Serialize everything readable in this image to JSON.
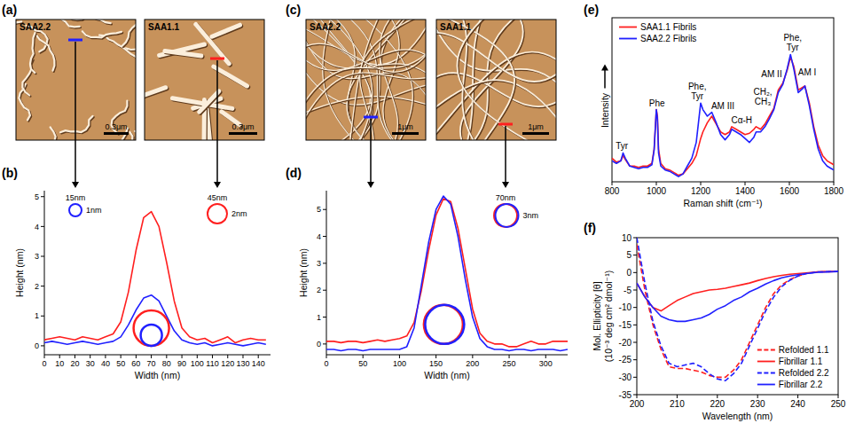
{
  "images": [
    {
      "panel_label": "(a)",
      "items": [
        {
          "label": "SAA2.2",
          "scale_bar": "0.3μm"
        },
        {
          "label": "SAA1.1",
          "scale_bar": "0.3μm"
        }
      ]
    },
    {
      "panel_label": "(c)",
      "items": [
        {
          "label": "SAA2.2",
          "scale_bar": "1μm"
        },
        {
          "label": "SAA1.1",
          "scale_bar": "1μm"
        }
      ]
    }
  ],
  "chart_data": [
    {
      "panel_label": "(b)",
      "type": "line",
      "x_label": "Width (nm)",
      "y_label": "Height (nm)",
      "x": [
        0,
        5,
        10,
        15,
        20,
        25,
        30,
        35,
        40,
        45,
        50,
        55,
        60,
        65,
        70,
        75,
        80,
        85,
        90,
        95,
        100,
        105,
        110,
        115,
        120,
        125,
        130,
        135,
        140,
        145
      ],
      "xlim": [
        0,
        148
      ],
      "xticks": [
        0,
        10,
        20,
        30,
        40,
        50,
        60,
        70,
        80,
        90,
        100,
        110,
        120,
        130,
        140
      ],
      "ylim": [
        -0.3,
        5.2
      ],
      "yticks": [
        0,
        1,
        2,
        3,
        4,
        5
      ],
      "series": [
        {
          "color": "#ff1f1f",
          "annotations": [
            "45nm",
            "2nm"
          ],
          "values": [
            0.2,
            0.25,
            0.3,
            0.25,
            0.2,
            0.3,
            0.25,
            0.2,
            0.3,
            0.4,
            0.8,
            1.8,
            3.2,
            4.3,
            4.5,
            4.0,
            2.8,
            1.5,
            0.6,
            0.3,
            0.2,
            0.25,
            0.1,
            0.2,
            0.3,
            0.1,
            0.2,
            0.25,
            0.2,
            0.2
          ]
        },
        {
          "color": "#2020ff",
          "annotations": [
            "15nm",
            "1nm"
          ],
          "values": [
            0.1,
            0.15,
            0.1,
            0.05,
            0.1,
            0.15,
            0.1,
            0.05,
            0.1,
            0.15,
            0.3,
            0.7,
            1.2,
            1.6,
            1.7,
            1.5,
            1.0,
            0.5,
            0.2,
            0.1,
            0.05,
            0.1,
            0.0,
            0.05,
            0.1,
            0.05,
            0.0,
            0.05,
            0.1,
            0.05
          ]
        }
      ]
    },
    {
      "panel_label": "(d)",
      "type": "line",
      "x_label": "Width (nm)",
      "y_label": "Height (nm)",
      "annotations": [
        "70nm",
        "3nm"
      ],
      "x": [
        0,
        10,
        20,
        30,
        40,
        50,
        60,
        70,
        80,
        90,
        100,
        110,
        120,
        130,
        140,
        150,
        160,
        170,
        180,
        190,
        200,
        210,
        220,
        230,
        240,
        250,
        260,
        270,
        280,
        290,
        300,
        310,
        320,
        330
      ],
      "xlim": [
        0,
        330
      ],
      "xticks": [
        0,
        50,
        100,
        150,
        200,
        250,
        300
      ],
      "ylim": [
        -0.4,
        5.7
      ],
      "yticks": [
        0,
        1,
        2,
        3,
        4,
        5
      ],
      "series": [
        {
          "color": "#ff1f1f",
          "values": [
            0.1,
            0.1,
            0.05,
            0.1,
            0.1,
            0.05,
            0.1,
            0.15,
            0.1,
            0.15,
            0.2,
            0.3,
            0.8,
            2.0,
            3.5,
            4.8,
            5.4,
            5.3,
            4.3,
            2.8,
            1.3,
            0.4,
            0.1,
            0.0,
            0.0,
            -0.1,
            -0.1,
            0.0,
            0.1,
            0.0,
            0.0,
            0.1,
            0.1,
            0.1
          ]
        },
        {
          "color": "#2020ff",
          "values": [
            -0.2,
            -0.2,
            -0.25,
            -0.2,
            -0.2,
            -0.25,
            -0.2,
            -0.2,
            -0.2,
            -0.2,
            -0.2,
            -0.1,
            0.6,
            2.2,
            3.8,
            5.0,
            5.5,
            5.2,
            4.0,
            2.4,
            1.0,
            0.2,
            -0.1,
            -0.2,
            -0.2,
            -0.25,
            -0.2,
            -0.2,
            -0.25,
            -0.2,
            -0.2,
            -0.2,
            -0.25,
            -0.2
          ]
        }
      ]
    },
    {
      "panel_label": "(e)",
      "type": "line",
      "x_label": "Raman shift (cm⁻¹)",
      "y_label": "Intensity",
      "tick_labels": "x",
      "legend": "upper left",
      "x": [
        800,
        820,
        840,
        850,
        860,
        880,
        900,
        920,
        940,
        960,
        980,
        990,
        1000,
        1005,
        1010,
        1020,
        1040,
        1060,
        1080,
        1100,
        1120,
        1140,
        1160,
        1180,
        1200,
        1210,
        1230,
        1250,
        1270,
        1290,
        1310,
        1330,
        1340,
        1360,
        1380,
        1400,
        1420,
        1440,
        1450,
        1470,
        1490,
        1510,
        1530,
        1550,
        1570,
        1590,
        1605,
        1620,
        1640,
        1660,
        1670,
        1690,
        1710,
        1730,
        1750,
        1770,
        1790,
        1800
      ],
      "xlim": [
        800,
        1800
      ],
      "xticks": [
        800,
        1000,
        1200,
        1400,
        1600,
        1800
      ],
      "ylim": [
        0,
        125
      ],
      "annotations": [
        {
          "text": "Tyr",
          "x": 845
        },
        {
          "text": "Phe",
          "x": 1003
        },
        {
          "text": "Phe, Tyr",
          "x": 1185
        },
        {
          "text": "AM III",
          "x": 1300
        },
        {
          "text": "Cα-H",
          "x": 1385
        },
        {
          "text": "CH₂, CH₃",
          "x": 1480
        },
        {
          "text": "AM II",
          "x": 1520
        },
        {
          "text": "Phe, Tyr",
          "x": 1615
        },
        {
          "text": "AM I",
          "x": 1680
        }
      ],
      "series": [
        {
          "name": "SAA1.1 Fibrils",
          "color": "#ff1f1f",
          "values": [
            18,
            15,
            16,
            20,
            17,
            12,
            12,
            11,
            12,
            12,
            14,
            25,
            55,
            50,
            25,
            14,
            10,
            9,
            7,
            5,
            6,
            10,
            14,
            20,
            33,
            38,
            45,
            50,
            44,
            38,
            36,
            38,
            42,
            40,
            38,
            36,
            37,
            40,
            42,
            40,
            44,
            50,
            56,
            70,
            75,
            85,
            95,
            88,
            70,
            72,
            73,
            60,
            42,
            28,
            20,
            16,
            14,
            13
          ]
        },
        {
          "name": "SAA2.2 Fibrils",
          "color": "#2020ff",
          "values": [
            16,
            14,
            16,
            22,
            18,
            12,
            11,
            10,
            11,
            11,
            13,
            24,
            55,
            48,
            22,
            12,
            9,
            8,
            6,
            4,
            6,
            12,
            18,
            30,
            60,
            55,
            50,
            53,
            45,
            36,
            32,
            36,
            40,
            38,
            36,
            33,
            30,
            34,
            38,
            38,
            42,
            48,
            55,
            68,
            74,
            86,
            97,
            86,
            68,
            71,
            73,
            58,
            40,
            25,
            16,
            12,
            10,
            9
          ]
        }
      ]
    },
    {
      "panel_label": "(f)",
      "type": "line",
      "x_label": "Wavelength (nm)",
      "y_label": "Mol. Ellipticity [θ] (10⁻³ deg cm² dmol⁻¹)",
      "legend": "lower right",
      "x": [
        200,
        202,
        204,
        206,
        208,
        210,
        212,
        214,
        216,
        218,
        220,
        222,
        224,
        226,
        228,
        230,
        232,
        234,
        236,
        238,
        240,
        242,
        245,
        250
      ],
      "xlim": [
        200,
        250
      ],
      "xticks": [
        200,
        210,
        220,
        230,
        240,
        250
      ],
      "ylim": [
        -35,
        10
      ],
      "yticks": [
        -35,
        -30,
        -25,
        -20,
        -15,
        -10,
        -5,
        0,
        5,
        10
      ],
      "series": [
        {
          "name": "Refolded 1.1",
          "color": "#ff1f1f",
          "line_style": "dashed",
          "values": [
            8,
            -5,
            -15,
            -22,
            -27,
            -27.5,
            -27.5,
            -28,
            -28.5,
            -29.5,
            -30,
            -30,
            -28,
            -25,
            -20,
            -15,
            -10,
            -6,
            -3.5,
            -2,
            -1,
            -0.3,
            0.2,
            0.3
          ]
        },
        {
          "name": "Fibrillar 1.1",
          "color": "#ff1f1f",
          "line_style": "solid",
          "values": [
            -3,
            -7,
            -10,
            -11,
            -9.5,
            -8,
            -7,
            -6,
            -5.5,
            -5,
            -4.8,
            -4.5,
            -4,
            -3.5,
            -3,
            -2.3,
            -1.7,
            -1.2,
            -0.8,
            -0.5,
            -0.3,
            -0.1,
            0.2,
            0.3
          ]
        },
        {
          "name": "Refolded 2.2",
          "color": "#2020ff",
          "line_style": "dashed",
          "values": [
            10,
            -3,
            -14,
            -21,
            -26,
            -27,
            -26.5,
            -26,
            -27,
            -29,
            -30.5,
            -31,
            -29,
            -26,
            -21,
            -16,
            -11,
            -7,
            -4,
            -2.2,
            -1,
            -0.3,
            0.2,
            0.3
          ]
        },
        {
          "name": "Fibrillar 2.2",
          "color": "#2020ff",
          "line_style": "solid",
          "values": [
            -3,
            -7,
            -10,
            -12.5,
            -13.5,
            -14,
            -14,
            -13.5,
            -13,
            -12,
            -10.5,
            -9.5,
            -8,
            -7,
            -5.5,
            -4.5,
            -3.3,
            -2.3,
            -1.5,
            -1,
            -0.6,
            -0.3,
            0.1,
            0.3
          ]
        }
      ]
    }
  ]
}
